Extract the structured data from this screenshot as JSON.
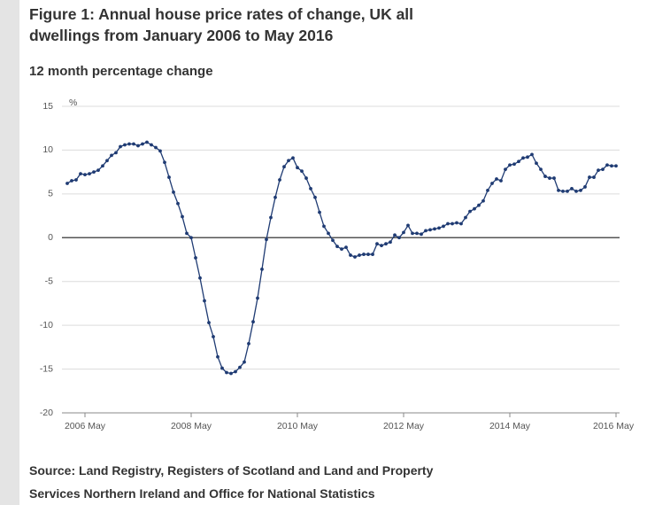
{
  "chart_data": {
    "type": "line",
    "title": "Figure 1: Annual house price rates of change, UK all dwellings from January 2006 to May 2016",
    "subtitle": "12 month percentage change",
    "y_unit": "%",
    "source": "Source: Land Registry, Registers of Scotland and Land and Property Services Northern Ireland and Office for National Statistics",
    "categories": [
      null,
      null,
      null,
      null,
      "2006 May",
      null,
      null,
      null,
      null,
      null,
      null,
      null,
      null,
      null,
      null,
      null,
      null,
      null,
      null,
      null,
      null,
      null,
      null,
      null,
      null,
      null,
      null,
      null,
      "2008 May",
      null,
      null,
      null,
      null,
      null,
      null,
      null,
      null,
      null,
      null,
      null,
      null,
      null,
      null,
      null,
      null,
      null,
      null,
      null,
      null,
      null,
      null,
      null,
      "2010 May",
      null,
      null,
      null,
      null,
      null,
      null,
      null,
      null,
      null,
      null,
      null,
      null,
      null,
      null,
      null,
      null,
      null,
      null,
      null,
      null,
      null,
      null,
      null,
      "2012 May",
      null,
      null,
      null,
      null,
      null,
      null,
      null,
      null,
      null,
      null,
      null,
      null,
      null,
      null,
      null,
      null,
      null,
      null,
      null,
      null,
      null,
      null,
      null,
      "2014 May",
      null,
      null,
      null,
      null,
      null,
      null,
      null,
      null,
      null,
      null,
      null,
      null,
      null,
      null,
      null,
      null,
      null,
      null,
      null,
      null,
      null,
      null,
      null,
      "2016 May"
    ],
    "values": [
      6.2,
      6.5,
      6.6,
      7.3,
      7.2,
      7.3,
      7.5,
      7.7,
      8.2,
      8.8,
      9.4,
      9.7,
      10.4,
      10.6,
      10.7,
      10.7,
      10.5,
      10.7,
      10.9,
      10.6,
      10.3,
      9.9,
      8.6,
      6.9,
      5.2,
      3.9,
      2.4,
      0.5,
      0,
      -2.3,
      -4.6,
      -7.2,
      -9.7,
      -11.3,
      -13.6,
      -14.9,
      -15.4,
      -15.5,
      -15.3,
      -14.8,
      -14.2,
      -12.1,
      -9.6,
      -6.9,
      -3.6,
      -0.2,
      2.3,
      4.6,
      6.6,
      8.1,
      8.8,
      9.1,
      8.0,
      7.6,
      6.8,
      5.6,
      4.6,
      2.9,
      1.3,
      0.5,
      -0.3,
      -1.0,
      -1.3,
      -1.1,
      -2.0,
      -2.2,
      -2.0,
      -1.9,
      -1.9,
      -1.9,
      -0.7,
      -0.9,
      -0.7,
      -0.5,
      0.3,
      0,
      0.6,
      1.4,
      0.5,
      0.5,
      0.4,
      0.8,
      0.9,
      1.0,
      1.1,
      1.3,
      1.6,
      1.6,
      1.7,
      1.6,
      2.3,
      3.0,
      3.3,
      3.7,
      4.2,
      5.4,
      6.2,
      6.7,
      6.5,
      7.8,
      8.3,
      8.4,
      8.7,
      9.1,
      9.2,
      9.5,
      8.5,
      7.8,
      7.0,
      6.8,
      6.8,
      5.4,
      5.3,
      5.3,
      5.6,
      5.3,
      5.4,
      5.8,
      6.9,
      6.9,
      7.7,
      7.8,
      8.3,
      8.2,
      8.2
    ],
    "color": "#1f3b73",
    "ylim": [
      -20,
      15
    ],
    "yticks": [
      -20,
      -15,
      -10,
      -5,
      0,
      5,
      10,
      15
    ],
    "grid": true
  }
}
